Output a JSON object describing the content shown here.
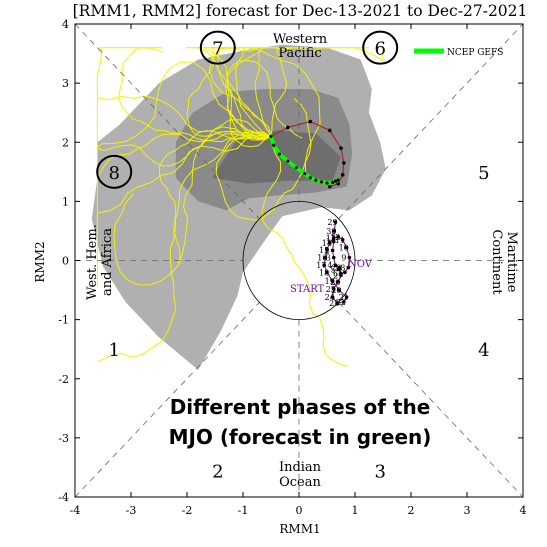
{
  "chart_data": {
    "type": "scatter",
    "title": "[RMM1, RMM2] forecast for Dec-13-2021 to Dec-27-2021",
    "xlabel": "RMM1",
    "ylabel": "RMM2",
    "xlim": [
      -4,
      4
    ],
    "ylim": [
      -4,
      4
    ],
    "xticks": [
      "-4",
      "-3",
      "-2",
      "-1",
      "0",
      "1",
      "2",
      "3",
      "4"
    ],
    "yticks": [
      "-4",
      "-3",
      "-2",
      "-1",
      "0",
      "1",
      "2",
      "3",
      "4"
    ],
    "phase_numbers": [
      {
        "label": "1",
        "x": -3.3,
        "y": -1.5,
        "circled": false
      },
      {
        "label": "2",
        "x": -1.45,
        "y": -3.55,
        "circled": false
      },
      {
        "label": "3",
        "x": 1.45,
        "y": -3.55,
        "circled": false
      },
      {
        "label": "4",
        "x": 3.3,
        "y": -1.5,
        "circled": false
      },
      {
        "label": "5",
        "x": 3.3,
        "y": 1.5,
        "circled": false
      },
      {
        "label": "6",
        "x": 1.45,
        "y": 3.6,
        "circled": true
      },
      {
        "label": "7",
        "x": -1.45,
        "y": 3.6,
        "circled": true
      },
      {
        "label": "8",
        "x": -3.3,
        "y": 1.5,
        "circled": true
      }
    ],
    "region_labels": {
      "western_pacific": [
        "Western",
        "Pacific"
      ],
      "indian_ocean": [
        "Indian",
        "Ocean"
      ],
      "west_hem": [
        "West. Hem.",
        "and Africa"
      ],
      "maritime": [
        "Maritime",
        "Continent"
      ]
    },
    "legend": {
      "label": "NCEP GEFS",
      "color": "#00ff00",
      "position": "top-right"
    },
    "annotation": [
      "Different phases of the",
      "MJO (forecast in green)"
    ],
    "month_labels": {
      "start": "START",
      "nov": "NOV"
    },
    "observed_day_labels": [
      "29",
      "30",
      "1",
      "2",
      "3",
      "4",
      "5",
      "6",
      "7",
      "8",
      "9",
      "10",
      "11",
      "12",
      "13",
      "14",
      "15",
      "16",
      "17",
      "18",
      "19",
      "20",
      "21",
      "22",
      "23",
      "24",
      "25",
      "26",
      "27",
      "28"
    ],
    "series": [
      {
        "name": "NCEP GEFS",
        "color": "#00ff00",
        "x": [
          -0.5,
          -0.45,
          -0.35,
          -0.2,
          -0.05,
          0.1,
          0.2,
          0.3,
          0.4,
          0.5,
          0.6,
          0.65,
          0.7
        ],
        "y": [
          2.1,
          1.95,
          1.8,
          1.68,
          1.57,
          1.47,
          1.4,
          1.36,
          1.33,
          1.31,
          1.32,
          1.34,
          1.36
        ]
      }
    ],
    "observed": {
      "color": "#800080",
      "x": [
        0.65,
        0.63,
        0.62,
        0.6,
        0.62,
        0.65,
        0.7,
        0.75,
        0.82,
        0.88,
        0.9,
        0.85,
        0.78,
        0.7,
        0.62,
        0.55,
        0.5,
        0.47,
        0.45,
        0.5,
        0.6,
        0.72,
        0.85,
        0.8,
        0.68,
        0.6,
        0.62,
        0.7,
        0.75,
        0.72
      ],
      "y": [
        0.65,
        0.5,
        0.32,
        0.17,
        0.05,
        -0.08,
        -0.15,
        -0.22,
        -0.2,
        -0.12,
        0.05,
        0.22,
        0.35,
        0.4,
        0.38,
        0.3,
        0.18,
        0.05,
        -0.08,
        -0.2,
        -0.35,
        -0.5,
        -0.62,
        -0.7,
        -0.72,
        -0.62,
        -0.48,
        -0.36,
        -0.25,
        -0.12
      ]
    },
    "ensemble_mean_red": {
      "color": "#b22222",
      "x": [
        -0.5,
        -0.2,
        0.2,
        0.55,
        0.75,
        0.8,
        0.78,
        0.7,
        0.55
      ],
      "y": [
        2.1,
        2.25,
        2.35,
        2.2,
        1.9,
        1.65,
        1.45,
        1.3,
        1.25
      ]
    },
    "grid": false
  }
}
